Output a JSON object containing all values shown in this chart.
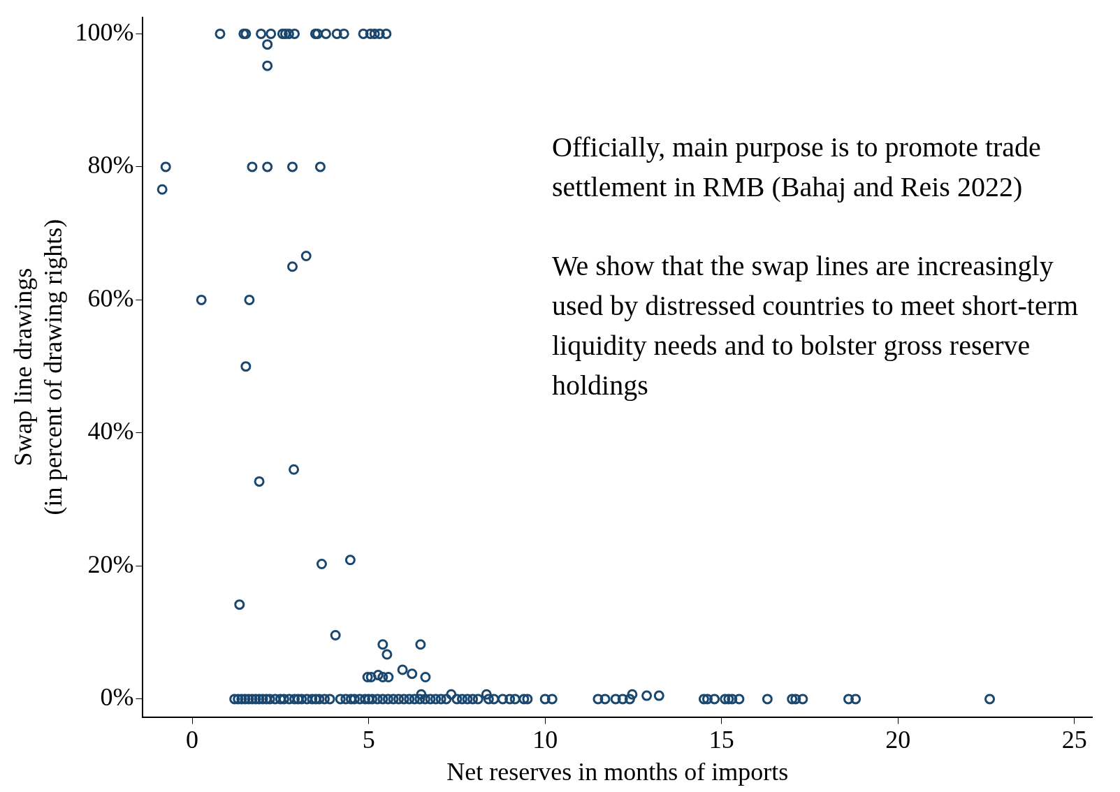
{
  "chart_data": {
    "type": "scatter",
    "xlabel": "Net reserves in months of imports",
    "ylabel": "Swap line drawings\n(in percent of drawing rights)",
    "annotations": [
      "Officially, main purpose is to promote trade settlement in RMB (Bahaj and Reis 2022)",
      "We show that the swap lines are increasingly used by distressed countries to meet short-term liquidity needs and to bolster gross reserve holdings"
    ],
    "xlim": [
      -1.4,
      25.5
    ],
    "xticks": [
      0,
      5,
      10,
      15,
      20,
      25
    ],
    "ylim": [
      -2.7,
      102.5
    ],
    "yticks": [
      {
        "value": 0,
        "label": "0%"
      },
      {
        "value": 20,
        "label": "20%"
      },
      {
        "value": 40,
        "label": "40%"
      },
      {
        "value": 60,
        "label": "60%"
      },
      {
        "value": 80,
        "label": "80%"
      },
      {
        "value": 100,
        "label": "100%"
      }
    ],
    "grid": false,
    "legend": false,
    "marker": "circle",
    "series": [
      {
        "color": "#1a476f",
        "x": [
          0.79,
          1.46,
          1.52,
          1.95,
          2.23,
          2.56,
          2.64,
          2.74,
          2.9,
          3.49,
          3.55,
          3.79,
          4.1,
          4.3,
          4.85,
          5.05,
          5.17,
          5.31,
          5.5,
          2.13,
          2.13,
          -0.75,
          -0.85,
          1.7,
          2.13,
          2.84,
          3.63,
          2.84,
          3.23,
          0.26,
          1.62,
          1.52,
          1.9,
          2.88,
          3.67,
          4.48,
          1.34,
          4.06,
          5.4,
          5.52,
          6.47,
          4.97,
          5.07,
          5.27,
          5.4,
          5.56,
          5.96,
          6.23,
          6.61,
          6.49,
          7.34,
          8.34,
          12.47,
          12.88,
          13.23,
          1.2,
          1.3,
          1.4,
          1.5,
          1.6,
          1.7,
          1.8,
          1.9,
          2.0,
          2.1,
          2.2,
          2.35,
          2.5,
          2.6,
          2.75,
          2.9,
          3.0,
          3.1,
          3.25,
          3.4,
          3.5,
          3.6,
          3.75,
          3.9,
          4.2,
          4.35,
          4.5,
          4.6,
          4.75,
          4.9,
          5.0,
          5.1,
          5.25,
          5.4,
          5.55,
          5.7,
          5.85,
          6.0,
          6.15,
          6.3,
          6.45,
          6.6,
          6.75,
          6.9,
          7.05,
          7.2,
          7.5,
          7.65,
          7.8,
          7.95,
          8.1,
          8.4,
          8.55,
          8.8,
          9.0,
          9.15,
          9.4,
          9.5,
          10.0,
          10.2,
          11.5,
          11.7,
          12.0,
          12.2,
          12.4,
          14.5,
          14.6,
          14.8,
          15.1,
          15.2,
          15.3,
          15.5,
          16.3,
          17.0,
          17.1,
          17.3,
          18.6,
          18.8,
          22.6
        ],
        "values": [
          100,
          100,
          100,
          100,
          100,
          100,
          100,
          100,
          100,
          100,
          100,
          100,
          100,
          100,
          100,
          100,
          100,
          100,
          100,
          98.4,
          95.2,
          80,
          76.6,
          80,
          80,
          80,
          80,
          65,
          66.6,
          60,
          60,
          50,
          32.7,
          34.5,
          20.3,
          20.9,
          14.2,
          9.6,
          8.2,
          6.7,
          8.2,
          3.3,
          3.3,
          3.6,
          3.3,
          3.3,
          4.4,
          3.8,
          3.3,
          0.7,
          0.7,
          0.7,
          0.7,
          0.5,
          0.5,
          0,
          0,
          0,
          0,
          0,
          0,
          0,
          0,
          0,
          0,
          0,
          0,
          0,
          0,
          0,
          0,
          0,
          0,
          0,
          0,
          0,
          0,
          0,
          0,
          0,
          0,
          0,
          0,
          0,
          0,
          0,
          0,
          0,
          0,
          0,
          0,
          0,
          0,
          0,
          0,
          0,
          0,
          0,
          0,
          0,
          0,
          0,
          0,
          0,
          0,
          0,
          0,
          0,
          0,
          0,
          0,
          0,
          0,
          0,
          0,
          0,
          0,
          0,
          0,
          0,
          0,
          0,
          0,
          0,
          0,
          0,
          0,
          0,
          0,
          0,
          0,
          0,
          0,
          0
        ]
      }
    ]
  }
}
